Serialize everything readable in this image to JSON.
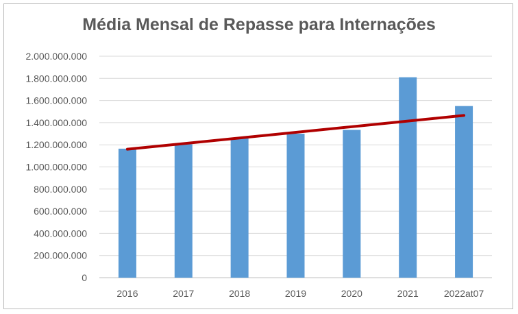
{
  "chart_data": {
    "type": "bar",
    "title": "Média Mensal de Repasse para Internações",
    "xlabel": "",
    "ylabel": "",
    "categories": [
      "2016",
      "2017",
      "2018",
      "2019",
      "2020",
      "2021",
      "2022at07"
    ],
    "values": [
      1165000000,
      1205000000,
      1260000000,
      1300000000,
      1335000000,
      1810000000,
      1550000000
    ],
    "ylim": [
      0,
      2000000000
    ],
    "y_ticks": [
      0,
      200000000,
      400000000,
      600000000,
      800000000,
      1000000000,
      1200000000,
      1400000000,
      1600000000,
      1800000000,
      2000000000
    ],
    "y_tick_labels": [
      "0",
      "200.000.000",
      "400.000.000",
      "600.000.000",
      "800.000.000",
      "1.000.000.000",
      "1.200.000.000",
      "1.400.000.000",
      "1.600.000.000",
      "1.800.000.000",
      "2.000.000.000"
    ],
    "trendline": {
      "type": "linear",
      "start": 1160000000,
      "end": 1465000000,
      "color": "#b00000"
    },
    "bar_color": "#5b9bd5",
    "grid": true,
    "legend": "none"
  }
}
